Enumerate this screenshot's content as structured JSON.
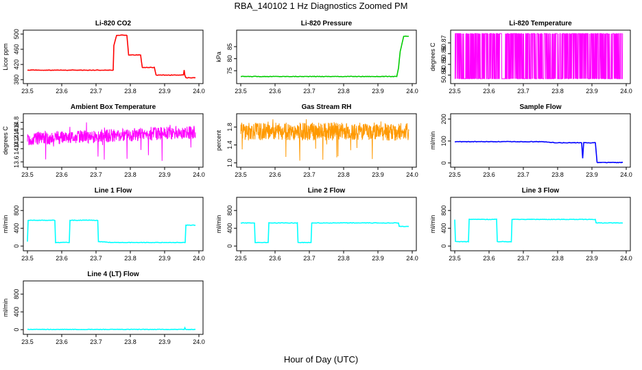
{
  "page": {
    "title": "RBA_140102  1 Hz Diagnostics Zoomed PM",
    "x_caption": "Hour of Day (UTC)"
  },
  "chart_data": [
    {
      "type": "line",
      "title": "Li-820 CO2",
      "ylabel": "Licor ppm",
      "color": "#ff0000",
      "xlim": [
        23.5,
        24.0
      ],
      "ylim": [
        375,
        505
      ],
      "xticks": [
        "23.5",
        "23.6",
        "23.7",
        "23.8",
        "23.9",
        "24.0"
      ],
      "yticks": [
        "380",
        "420",
        "460",
        "500"
      ],
      "x": [
        23.5,
        23.75,
        23.752,
        23.76,
        23.79,
        23.795,
        23.83,
        23.835,
        23.87,
        23.875,
        23.955,
        23.957,
        23.959,
        23.962,
        23.97,
        23.99
      ],
      "values": [
        405,
        405,
        470,
        497,
        497,
        445,
        445,
        412,
        412,
        392,
        392,
        405,
        392,
        385,
        385,
        385
      ]
    },
    {
      "type": "line",
      "title": "Li-820 Pressure",
      "ylabel": "kPa",
      "color": "#00cc00",
      "xlim": [
        23.5,
        24.0
      ],
      "ylim": [
        70.5,
        91
      ],
      "xticks": [
        "23.5",
        "23.6",
        "23.7",
        "23.8",
        "23.9",
        "24.0"
      ],
      "yticks": [
        "75",
        "80",
        "85"
      ],
      "x": [
        23.5,
        23.955,
        23.96,
        23.965,
        23.975,
        23.99
      ],
      "values": [
        72.6,
        72.6,
        76,
        83,
        89.3,
        89.3
      ]
    },
    {
      "type": "line",
      "title": "Li-820 Temperature",
      "ylabel": "degrees C",
      "color": "#ff00ff",
      "xlim": [
        23.5,
        24.0
      ],
      "ylim": [
        50.834,
        50.88
      ],
      "xticks": [
        "23.5",
        "23.6",
        "23.7",
        "23.8",
        "23.9",
        "24.0"
      ],
      "yticks": [
        "50.84",
        "50.85",
        "50.86",
        "50.87"
      ],
      "noise": {
        "low": 50.8366,
        "high": 50.8787,
        "style": "binary"
      }
    },
    {
      "type": "line",
      "title": "Ambient Box Temperature",
      "ylabel": "degrees C",
      "color": "#ff00ff",
      "xlim": [
        23.5,
        24.0
      ],
      "ylim": [
        13.5,
        15.0
      ],
      "xticks": [
        "23.5",
        "23.6",
        "23.7",
        "23.8",
        "23.9",
        "24.0"
      ],
      "yticks": [
        "13.6",
        "14.0",
        "14.2",
        "14.4",
        "14.6",
        "14.8"
      ],
      "noise": {
        "start": 14.3,
        "end": 14.5,
        "spread": 0.2,
        "spikes_down": 13.55,
        "spikes_up": 14.95,
        "style": "band"
      }
    },
    {
      "type": "line",
      "title": "Gas Stream RH",
      "ylabel": "percent",
      "color": "#ff9900",
      "xlim": [
        23.5,
        24.0
      ],
      "ylim": [
        0.95,
        2.05
      ],
      "xticks": [
        "23.5",
        "23.6",
        "23.7",
        "23.8",
        "23.9",
        "24.0"
      ],
      "yticks": [
        "1.0",
        "1.4",
        "1.8"
      ],
      "noise": {
        "start": 1.7,
        "end": 1.7,
        "spread": 0.2,
        "spikes_down": 1.0,
        "spikes_up": 2.0,
        "style": "band"
      }
    },
    {
      "type": "line",
      "title": "Sample Flow",
      "ylabel": "ml/min",
      "color": "#0000ff",
      "xlim": [
        23.5,
        24.0
      ],
      "ylim": [
        -10,
        215
      ],
      "xticks": [
        "23.5",
        "23.6",
        "23.7",
        "23.8",
        "23.9",
        "24.0"
      ],
      "yticks": [
        "0",
        "100",
        "200"
      ],
      "x": [
        23.5,
        23.75,
        23.8,
        23.87,
        23.873,
        23.876,
        23.879,
        23.91,
        23.915,
        23.99
      ],
      "values": [
        97,
        97,
        92,
        92,
        20,
        92,
        92,
        92,
        2,
        2
      ]
    },
    {
      "type": "line",
      "title": "Line 1 Flow",
      "ylabel": "ml/min",
      "color": "#00ffff",
      "xlim": [
        23.5,
        24.0
      ],
      "ylim": [
        -60,
        1050
      ],
      "xticks": [
        "23.5",
        "23.6",
        "23.7",
        "23.8",
        "23.9",
        "24.0"
      ],
      "yticks": [
        "0",
        "400",
        "800"
      ],
      "x": [
        23.5,
        23.502,
        23.58,
        23.582,
        23.622,
        23.624,
        23.705,
        23.707,
        23.75,
        23.96,
        23.962,
        23.99
      ],
      "values": [
        100,
        580,
        580,
        80,
        80,
        580,
        580,
        100,
        80,
        80,
        470,
        470
      ]
    },
    {
      "type": "line",
      "title": "Line 2 Flow",
      "ylabel": "ml/min",
      "color": "#00ffff",
      "xlim": [
        23.5,
        24.0
      ],
      "ylim": [
        -60,
        1050
      ],
      "xticks": [
        "23.5",
        "23.6",
        "23.7",
        "23.8",
        "23.9",
        "24.0"
      ],
      "yticks": [
        "0",
        "400",
        "800"
      ],
      "x": [
        23.5,
        23.54,
        23.542,
        23.58,
        23.582,
        23.665,
        23.667,
        23.705,
        23.707,
        23.96,
        23.962,
        23.99
      ],
      "values": [
        520,
        520,
        80,
        80,
        520,
        520,
        80,
        80,
        520,
        520,
        440,
        440
      ]
    },
    {
      "type": "line",
      "title": "Line 3 Flow",
      "ylabel": "ml/min",
      "color": "#00ffff",
      "xlim": [
        23.5,
        24.0
      ],
      "ylim": [
        -60,
        1050
      ],
      "xticks": [
        "23.5",
        "23.6",
        "23.7",
        "23.8",
        "23.9",
        "24.0"
      ],
      "yticks": [
        "0",
        "400",
        "800"
      ],
      "x": [
        23.5,
        23.502,
        23.54,
        23.542,
        23.622,
        23.624,
        23.665,
        23.667,
        23.91,
        23.912,
        23.99
      ],
      "values": [
        600,
        100,
        100,
        600,
        600,
        100,
        100,
        600,
        600,
        520,
        520
      ]
    },
    {
      "type": "line",
      "title": "Line 4 (LT) Flow",
      "ylabel": "ml/min",
      "color": "#00ffff",
      "xlim": [
        23.5,
        24.0
      ],
      "ylim": [
        -60,
        1050
      ],
      "xticks": [
        "23.5",
        "23.6",
        "23.7",
        "23.8",
        "23.9",
        "24.0"
      ],
      "yticks": [
        "0",
        "400",
        "800"
      ],
      "x": [
        23.5,
        23.957,
        23.959,
        23.961,
        23.99
      ],
      "values": [
        5,
        5,
        40,
        5,
        5
      ]
    }
  ]
}
